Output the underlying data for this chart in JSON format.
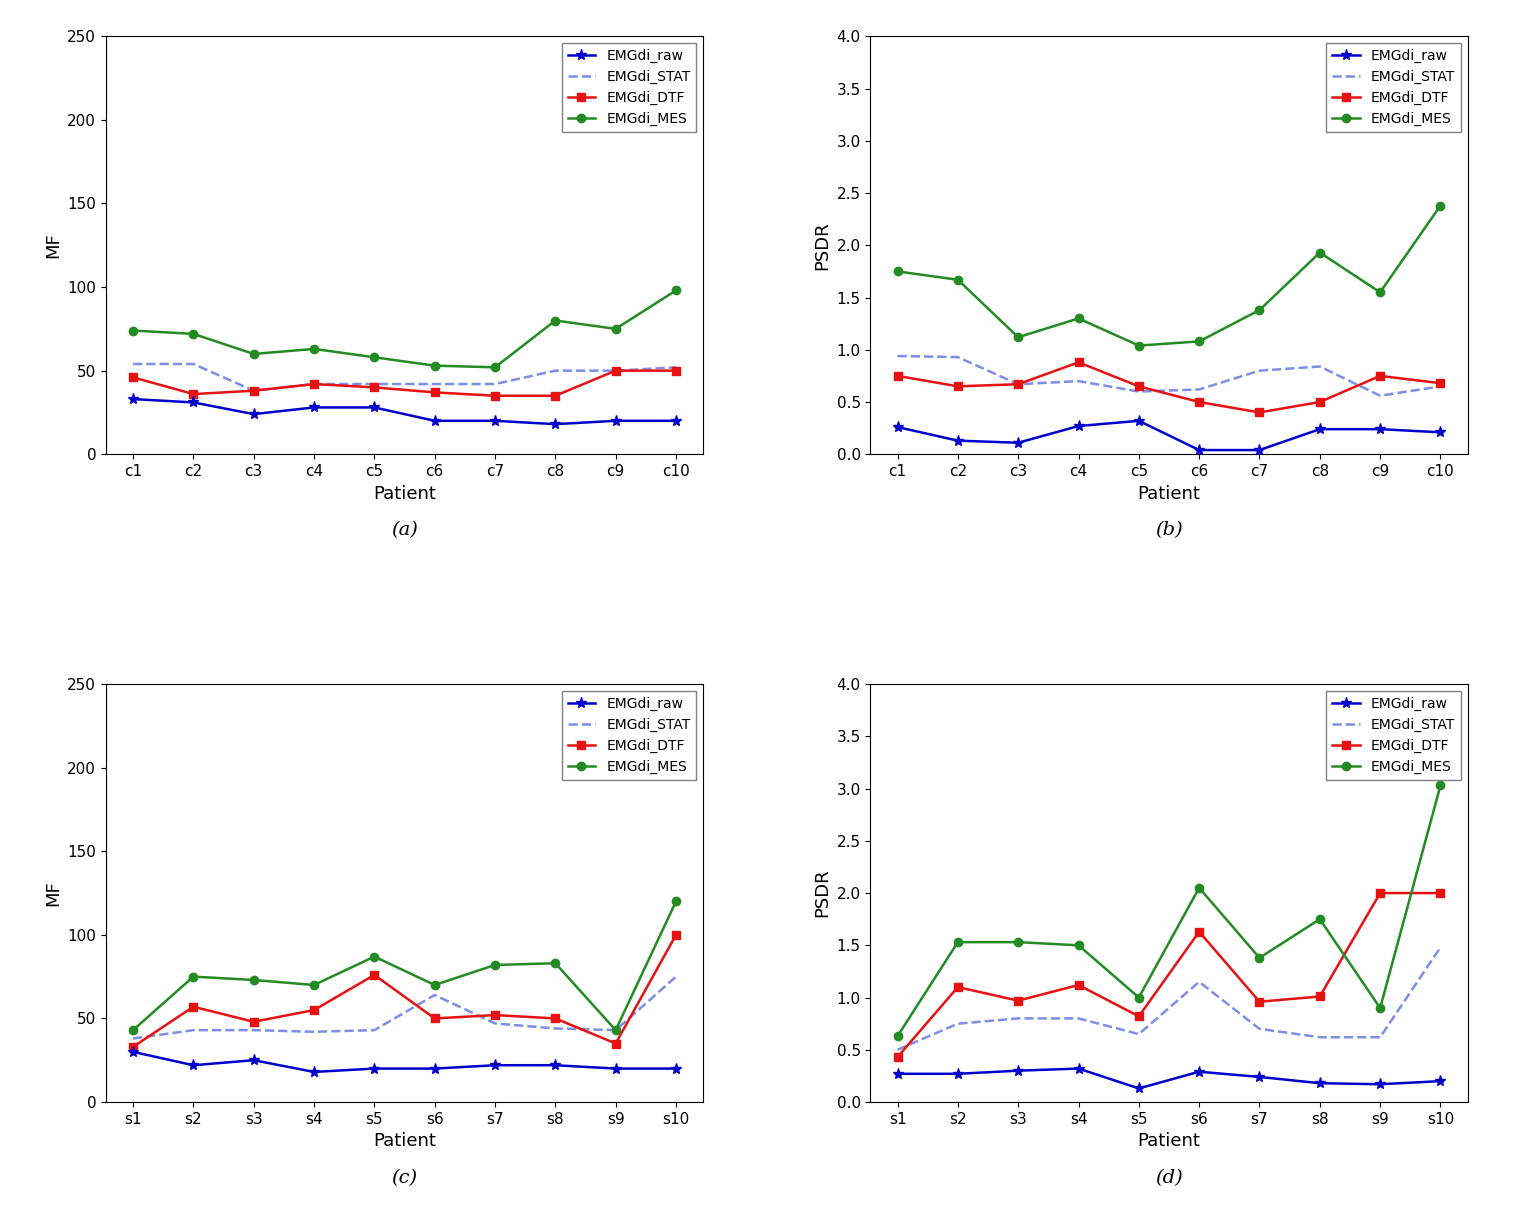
{
  "patients_c": [
    "c1",
    "c2",
    "c3",
    "c4",
    "c5",
    "c6",
    "c7",
    "c8",
    "c9",
    "c10"
  ],
  "patients_s": [
    "s1",
    "s2",
    "s3",
    "s4",
    "s5",
    "s6",
    "s7",
    "s8",
    "s9",
    "s10"
  ],
  "a_raw": [
    33,
    31,
    24,
    28,
    28,
    20,
    20,
    18,
    20,
    20
  ],
  "a_stat": [
    54,
    54,
    38,
    42,
    42,
    42,
    42,
    50,
    50,
    52
  ],
  "a_dtf": [
    46,
    36,
    38,
    42,
    40,
    37,
    35,
    35,
    50,
    50
  ],
  "a_mes": [
    74,
    72,
    60,
    63,
    58,
    53,
    52,
    80,
    75,
    98
  ],
  "b_raw": [
    0.26,
    0.13,
    0.11,
    0.27,
    0.32,
    0.04,
    0.04,
    0.24,
    0.24,
    0.21
  ],
  "b_stat": [
    0.94,
    0.93,
    0.67,
    0.7,
    0.6,
    0.62,
    0.8,
    0.84,
    0.56,
    0.65
  ],
  "b_dtf": [
    0.75,
    0.65,
    0.67,
    0.88,
    0.65,
    0.5,
    0.4,
    0.5,
    0.75,
    0.68
  ],
  "b_mes": [
    1.75,
    1.67,
    1.12,
    1.3,
    1.04,
    1.08,
    1.38,
    1.93,
    1.55,
    2.38
  ],
  "c_raw": [
    30,
    22,
    25,
    18,
    20,
    20,
    22,
    22,
    20,
    20
  ],
  "c_stat": [
    38,
    43,
    43,
    42,
    43,
    64,
    47,
    44,
    43,
    75
  ],
  "c_dtf": [
    33,
    57,
    48,
    55,
    76,
    50,
    52,
    50,
    35,
    100
  ],
  "c_mes": [
    43,
    75,
    73,
    70,
    87,
    70,
    82,
    83,
    43,
    120
  ],
  "d_raw": [
    0.27,
    0.27,
    0.3,
    0.32,
    0.13,
    0.29,
    0.24,
    0.18,
    0.17,
    0.2
  ],
  "d_stat": [
    0.5,
    0.75,
    0.8,
    0.8,
    0.65,
    1.15,
    0.7,
    0.62,
    0.62,
    1.48
  ],
  "d_dtf": [
    0.43,
    1.1,
    0.97,
    1.12,
    0.82,
    1.63,
    0.96,
    1.01,
    2.0,
    2.0
  ],
  "d_mes": [
    0.63,
    1.53,
    1.53,
    1.5,
    1.0,
    2.05,
    1.38,
    1.75,
    0.9,
    3.03
  ],
  "color_raw": "#0000cd",
  "color_stat": "#7b8ee8",
  "color_dtf": "#e81010",
  "color_mes": "#228b22",
  "ylabel_mf": "MF",
  "ylabel_psdr": "PSDR",
  "xlabel": "Patient",
  "ylim_mf": [
    0,
    250
  ],
  "ylim_psdr": [
    0.0,
    4.0
  ],
  "yticks_mf": [
    0,
    50,
    100,
    150,
    200,
    250
  ],
  "yticks_psdr": [
    0.0,
    0.5,
    1.0,
    1.5,
    2.0,
    2.5,
    3.0,
    3.5,
    4.0
  ],
  "label_a": "(a)",
  "label_b": "(b)",
  "label_c": "(c)",
  "label_d": "(d)",
  "legend_labels": [
    "EMGdi_raw",
    "EMGdi_STAT",
    "EMGdi_DTF",
    "EMGdi_MES"
  ]
}
